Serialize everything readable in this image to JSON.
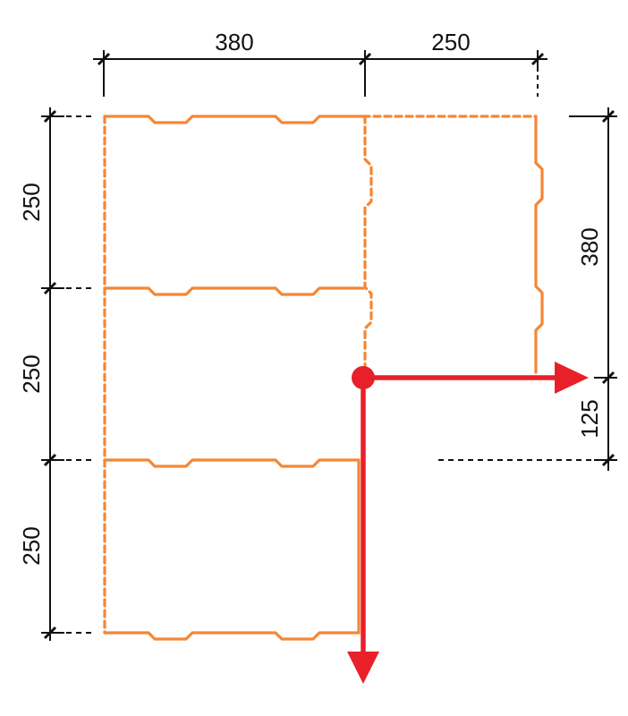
{
  "colors": {
    "block": "#f58634",
    "axis": "#e8202a",
    "dimension": "#111111",
    "background": "#ffffff"
  },
  "dimensions": {
    "top_left": "380",
    "top_right": "250",
    "left_top": "250",
    "left_middle": "250",
    "left_bottom": "250",
    "right_upper": "380",
    "right_lower": "125"
  }
}
